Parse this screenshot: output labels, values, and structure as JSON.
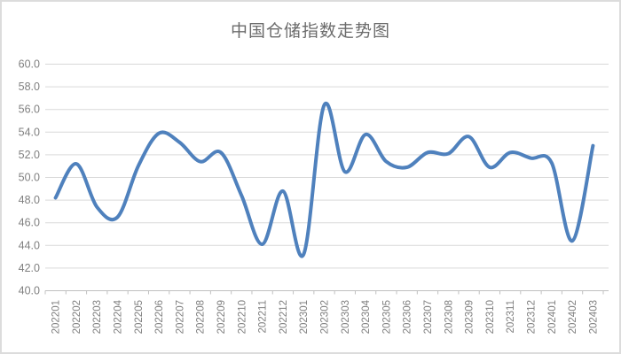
{
  "chart_data": {
    "type": "line",
    "title": "中国仓储指数走势图",
    "categories": [
      "202201",
      "202202",
      "202203",
      "202204",
      "202205",
      "202206",
      "202207",
      "202208",
      "202209",
      "202210",
      "202211",
      "202212",
      "202301",
      "202302",
      "202303",
      "202304",
      "202305",
      "202306",
      "202307",
      "202308",
      "202309",
      "202310",
      "202311",
      "202312",
      "202401",
      "202402",
      "202403"
    ],
    "series": [
      {
        "name": "中国仓储指数",
        "values": [
          48.2,
          51.2,
          47.4,
          46.5,
          51.0,
          53.9,
          53.1,
          51.4,
          52.2,
          48.4,
          44.1,
          48.8,
          43.2,
          56.4,
          50.5,
          53.8,
          51.4,
          50.9,
          52.2,
          52.1,
          53.6,
          50.9,
          52.2,
          51.7,
          51.3,
          44.4,
          52.8
        ]
      }
    ],
    "xlabel": "",
    "ylabel": "",
    "ylim": [
      40.0,
      60.0
    ],
    "ytick_step": 2.0,
    "ytick_labels": [
      "40.0",
      "42.0",
      "44.0",
      "46.0",
      "48.0",
      "50.0",
      "52.0",
      "54.0",
      "56.0",
      "58.0",
      "60.0"
    ],
    "grid": true,
    "legend_position": "none",
    "smooth_line": true,
    "colors": {
      "line": "#4F81BD",
      "gridline": "#D9D9D9",
      "axis": "#C0C0C0",
      "tick_label": "#808080",
      "title": "#6B6B6B",
      "frame": "#DCDCDC",
      "background": "#FFFFFF"
    }
  }
}
